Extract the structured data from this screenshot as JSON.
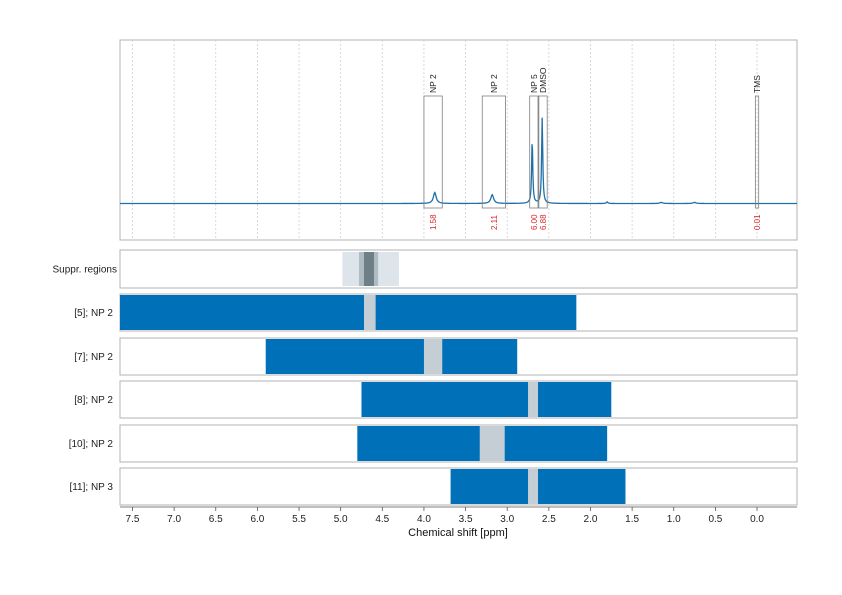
{
  "chart_data": {
    "type": "line",
    "x_axis": {
      "label": "Chemical shift [ppm]",
      "range": [
        7.65,
        -0.48
      ],
      "ticks": [
        7.5,
        7.0,
        6.5,
        6.0,
        5.5,
        5.0,
        4.5,
        4.0,
        3.5,
        3.0,
        2.5,
        2.0,
        1.5,
        1.0,
        0.5,
        0.0
      ],
      "tick_labels": [
        "7.5",
        "7.0",
        "6.5",
        "6.0",
        "5.5",
        "5.0",
        "4.5",
        "4.0",
        "3.5",
        "3.0",
        "2.5",
        "2.0",
        "1.5",
        "1.0",
        "0.5",
        "0.0"
      ],
      "grid": true
    },
    "spectrum": {
      "color": "#1f6fa8",
      "peaks": [
        {
          "shift": 3.87,
          "height": 0.1,
          "width": 0.02
        },
        {
          "shift": 3.18,
          "height": 0.08,
          "width": 0.02
        },
        {
          "shift": 2.7,
          "height": 0.58,
          "width": 0.008
        },
        {
          "shift": 2.58,
          "height": 0.78,
          "width": 0.008
        },
        {
          "shift": 1.8,
          "height": 0.015,
          "width": 0.01
        },
        {
          "shift": 1.15,
          "height": 0.01,
          "width": 0.02
        },
        {
          "shift": 0.75,
          "height": 0.01,
          "width": 0.02
        }
      ]
    },
    "annotations": [
      {
        "label": "NP 2",
        "from": 4.0,
        "to": 3.78,
        "integral": "1.58"
      },
      {
        "label": "NP 2",
        "from": 3.3,
        "to": 3.02,
        "integral": "2.11"
      },
      {
        "label": "NP 5",
        "from": 2.73,
        "to": 2.63,
        "integral": "6.00"
      },
      {
        "label": "DMSO",
        "from": 2.62,
        "to": 2.52,
        "integral": "6.88"
      },
      {
        "label": "TMS",
        "from": 0.02,
        "to": -0.02,
        "integral": "0.01"
      }
    ],
    "suppression": {
      "label": "Suppr. regions",
      "regions": [
        {
          "from": 4.98,
          "to": 4.3,
          "level": 1
        },
        {
          "from": 4.78,
          "to": 4.55,
          "level": 2
        },
        {
          "from": 4.72,
          "to": 4.6,
          "level": 3
        }
      ]
    },
    "rows": [
      {
        "label": "[5]; NP 2",
        "from": 7.65,
        "to": 2.17,
        "gap_from": 4.72,
        "gap_to": 4.58
      },
      {
        "label": "[7]; NP 2",
        "from": 5.9,
        "to": 2.88,
        "gap_from": 4.0,
        "gap_to": 3.78
      },
      {
        "label": "[8]; NP 2",
        "from": 4.75,
        "to": 1.75,
        "gap_from": 2.75,
        "gap_to": 2.63
      },
      {
        "label": "[10]; NP 2",
        "from": 4.8,
        "to": 1.8,
        "gap_from": 3.33,
        "gap_to": 3.03
      },
      {
        "label": "[11]; NP 3",
        "from": 3.68,
        "to": 1.58,
        "gap_from": 2.75,
        "gap_to": 2.63
      }
    ],
    "colors": {
      "bar": "#0070b8",
      "gap": "#c4ced4",
      "supp1": "#dde5ea",
      "supp2": "#b0bcc3",
      "supp3": "#6f7f88"
    }
  }
}
